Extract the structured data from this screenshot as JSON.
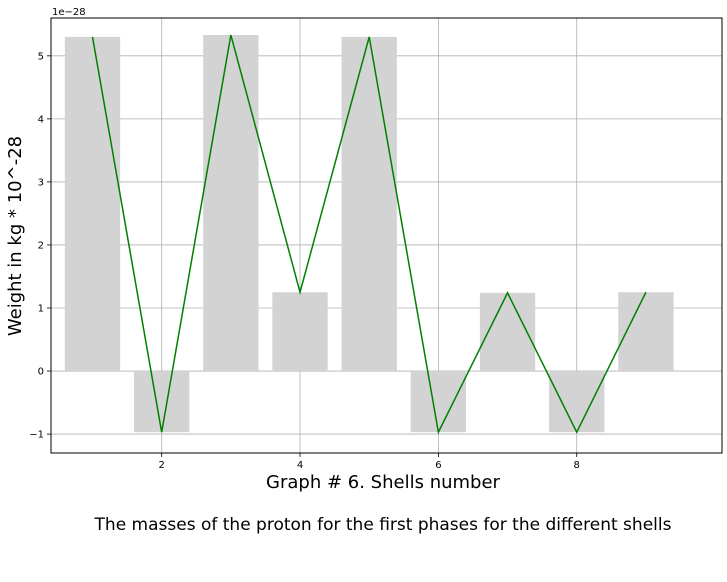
{
  "chart_data": {
    "type": "bar",
    "x": [
      1,
      2,
      3,
      4,
      5,
      6,
      7,
      8,
      9
    ],
    "values": [
      5.3,
      -0.97,
      5.33,
      1.25,
      5.3,
      -0.97,
      1.24,
      -0.97,
      1.25
    ],
    "line_values": [
      5.3,
      -0.97,
      5.33,
      1.25,
      5.3,
      -0.97,
      1.24,
      -0.97,
      1.25
    ],
    "bar_color": "#d3d3d3",
    "line_color": "#008000",
    "xlabel": "Graph # 6. Shells number",
    "ylabel": "Weight in kg * 10^-28",
    "y_offset_label": "1e−28",
    "xticks": [
      "2",
      "4",
      "6",
      "8"
    ],
    "xtick_values": [
      2,
      4,
      6,
      8
    ],
    "yticks": [
      "−1",
      "0",
      "1",
      "2",
      "3",
      "4",
      "5"
    ],
    "ytick_values": [
      -1,
      0,
      1,
      2,
      3,
      4,
      5
    ],
    "xlim": [
      0.4,
      10.1
    ],
    "ylim": [
      -1.3,
      5.6
    ],
    "grid": true
  },
  "caption": "The masses of the proton for the first phases for the different shells"
}
